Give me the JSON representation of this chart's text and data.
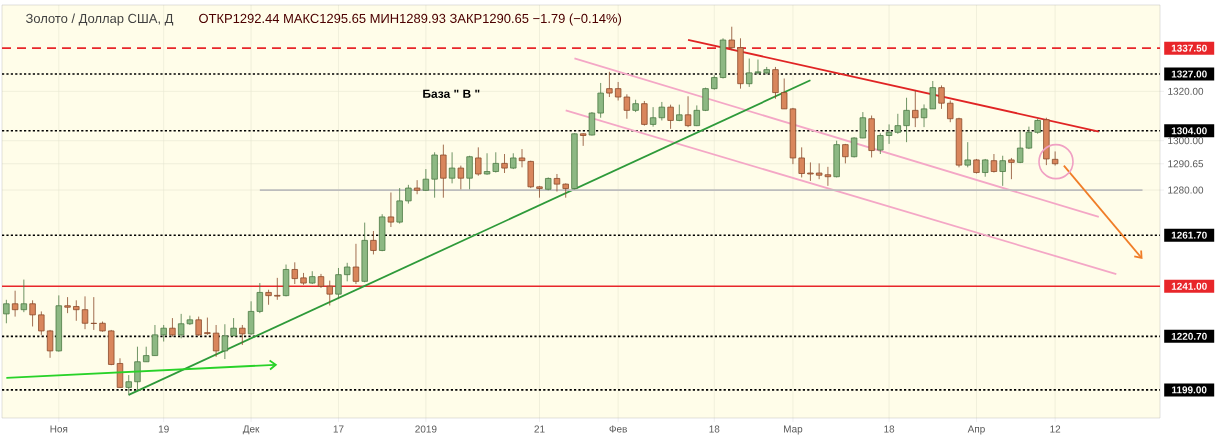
{
  "chart_data": {
    "type": "candlestick",
    "title": "Золото / Доллар США, Д",
    "subtitle": "ОТКР1292.44  МАКС1295.65  МИН1289.93  ЗАКР1290.65  −1.79 (−0.14%)",
    "annotations": [
      "База  \" В \""
    ],
    "categories": [
      null,
      null,
      null,
      null,
      null,
      null,
      "Ноя",
      null,
      null,
      null,
      null,
      null,
      null,
      null,
      null,
      null,
      null,
      null,
      "19",
      null,
      null,
      null,
      null,
      null,
      null,
      null,
      null,
      null,
      "Дек",
      null,
      null,
      null,
      null,
      null,
      null,
      null,
      null,
      null,
      "17",
      null,
      null,
      null,
      null,
      null,
      null,
      null,
      null,
      null,
      "2019",
      null,
      null,
      null,
      null,
      null,
      null,
      null,
      null,
      null,
      null,
      null,
      null,
      "21",
      null,
      null,
      null,
      null,
      null,
      null,
      null,
      null,
      "Фев",
      null,
      null,
      null,
      null,
      null,
      null,
      null,
      null,
      null,
      null,
      "18",
      null,
      null,
      null,
      null,
      null,
      null,
      null,
      null,
      "Мар",
      null,
      null,
      null,
      null,
      null,
      null,
      null,
      null,
      null,
      null,
      "18",
      null,
      null,
      null,
      null,
      null,
      null,
      null,
      null,
      null,
      "Апр",
      null,
      null,
      null,
      null,
      null,
      null,
      null,
      null,
      "12",
      null,
      null,
      null,
      null,
      null,
      null,
      null,
      null,
      null,
      null,
      null
    ],
    "ohlc": [
      [
        1229.8,
        1235.5,
        1226.0,
        1233.9
      ],
      [
        1233.9,
        1239.2,
        1228.7,
        1231.5
      ],
      [
        1231.5,
        1243.7,
        1230.5,
        1233.9
      ],
      [
        1233.9,
        1235.3,
        1224.7,
        1229.4
      ],
      [
        1229.4,
        1230.8,
        1221.3,
        1222.9
      ],
      [
        1222.9,
        1223.3,
        1212.0,
        1214.8
      ],
      [
        1214.8,
        1237.3,
        1214.5,
        1233.1
      ],
      [
        1233.1,
        1236.6,
        1230.1,
        1232.5
      ],
      [
        1232.8,
        1235.3,
        1227.0,
        1231.5
      ],
      [
        1231.5,
        1236.9,
        1223.6,
        1226.0
      ],
      [
        1226.0,
        1236.6,
        1223.3,
        1225.9
      ],
      [
        1226.0,
        1226.7,
        1222.6,
        1222.9
      ],
      [
        1222.9,
        1223.3,
        1209.0,
        1209.3
      ],
      [
        1209.7,
        1211.8,
        1200.0,
        1200.0
      ],
      [
        1200.0,
        1205.0,
        1196.8,
        1202.3
      ],
      [
        1202.3,
        1216.5,
        1198.9,
        1210.4
      ],
      [
        1210.4,
        1216.5,
        1210.4,
        1212.9
      ],
      [
        1212.9,
        1225.3,
        1212.9,
        1221.3
      ],
      [
        1221.3,
        1225.3,
        1218.6,
        1224.0
      ],
      [
        1224.0,
        1228.1,
        1220.6,
        1221.3
      ],
      [
        1221.3,
        1229.8,
        1219.9,
        1225.8
      ],
      [
        1225.8,
        1229.1,
        1225.3,
        1227.4
      ],
      [
        1227.4,
        1228.7,
        1220.9,
        1221.3
      ],
      [
        1222.2,
        1228.3,
        1221.3,
        1221.8
      ],
      [
        1222.0,
        1225.3,
        1212.4,
        1214.8
      ],
      [
        1214.8,
        1225.6,
        1211.5,
        1220.9
      ],
      [
        1220.9,
        1228.1,
        1220.9,
        1224.0
      ],
      [
        1224.0,
        1225.3,
        1217.2,
        1221.7
      ],
      [
        1221.7,
        1234.9,
        1221.3,
        1230.8
      ],
      [
        1230.8,
        1242.3,
        1230.1,
        1238.5
      ],
      [
        1238.5,
        1239.6,
        1233.5,
        1237.2
      ],
      [
        1237.3,
        1244.4,
        1235.5,
        1237.0
      ],
      [
        1237.2,
        1249.8,
        1236.9,
        1247.8
      ],
      [
        1247.8,
        1250.7,
        1241.9,
        1244.1
      ],
      [
        1244.4,
        1246.4,
        1241.6,
        1242.3
      ],
      [
        1242.3,
        1247.1,
        1241.9,
        1244.9
      ],
      [
        1244.9,
        1246.0,
        1240.3,
        1241.0
      ],
      [
        1241.0,
        1243.3,
        1233.2,
        1237.8
      ],
      [
        1237.8,
        1248.4,
        1235.8,
        1245.7
      ],
      [
        1245.7,
        1250.5,
        1243.0,
        1248.8
      ],
      [
        1248.8,
        1258.2,
        1241.9,
        1243.0
      ],
      [
        1243.0,
        1266.8,
        1242.6,
        1259.6
      ],
      [
        1259.6,
        1263.4,
        1253.9,
        1255.5
      ],
      [
        1255.5,
        1270.2,
        1255.2,
        1269.1
      ],
      [
        1269.1,
        1279.0,
        1265.0,
        1267.0
      ],
      [
        1267.0,
        1280.8,
        1266.4,
        1275.6
      ],
      [
        1275.6,
        1282.1,
        1274.5,
        1280.8
      ],
      [
        1280.8,
        1284.0,
        1278.3,
        1279.9
      ],
      [
        1279.9,
        1288.5,
        1279.7,
        1284.4
      ],
      [
        1284.4,
        1295.3,
        1276.9,
        1294.2
      ],
      [
        1294.2,
        1298.4,
        1276.9,
        1284.8
      ],
      [
        1284.8,
        1295.3,
        1282.7,
        1288.9
      ],
      [
        1288.9,
        1289.9,
        1280.3,
        1284.8
      ],
      [
        1284.8,
        1293.9,
        1280.3,
        1293.5
      ],
      [
        1293.0,
        1297.3,
        1285.8,
        1286.5
      ],
      [
        1286.5,
        1294.9,
        1286.2,
        1287.5
      ],
      [
        1287.5,
        1295.3,
        1287.1,
        1290.8
      ],
      [
        1290.8,
        1294.6,
        1286.9,
        1288.9
      ],
      [
        1288.9,
        1294.9,
        1288.5,
        1293.0
      ],
      [
        1293.0,
        1296.6,
        1289.2,
        1291.9
      ],
      [
        1291.6,
        1291.9,
        1280.8,
        1281.3
      ],
      [
        1281.3,
        1281.7,
        1276.9,
        1280.6
      ],
      [
        1280.3,
        1285.1,
        1279.9,
        1284.7
      ],
      [
        1284.7,
        1286.5,
        1279.4,
        1282.4
      ],
      [
        1282.4,
        1282.7,
        1276.9,
        1280.6
      ],
      [
        1280.6,
        1303.0,
        1280.3,
        1302.8
      ],
      [
        1302.8,
        1303.0,
        1297.9,
        1302.1
      ],
      [
        1302.3,
        1311.6,
        1302.1,
        1311.2
      ],
      [
        1311.2,
        1323.4,
        1309.3,
        1319.3
      ],
      [
        1321.1,
        1327.9,
        1317.7,
        1319.3
      ],
      [
        1321.1,
        1323.8,
        1316.3,
        1317.7
      ],
      [
        1317.7,
        1318.8,
        1308.9,
        1312.3
      ],
      [
        1312.3,
        1316.6,
        1311.6,
        1315.0
      ],
      [
        1315.0,
        1316.1,
        1306.1,
        1306.6
      ],
      [
        1306.6,
        1313.6,
        1305.7,
        1309.3
      ],
      [
        1309.3,
        1315.7,
        1308.2,
        1313.6
      ],
      [
        1313.6,
        1314.6,
        1304.8,
        1308.2
      ],
      [
        1308.2,
        1314.6,
        1307.9,
        1310.5
      ],
      [
        1310.5,
        1318.0,
        1305.5,
        1306.1
      ],
      [
        1306.1,
        1314.3,
        1305.9,
        1312.3
      ],
      [
        1312.3,
        1321.5,
        1312.0,
        1321.1
      ],
      [
        1321.1,
        1326.5,
        1320.7,
        1325.6
      ],
      [
        1325.6,
        1341.5,
        1325.2,
        1340.8
      ],
      [
        1340.8,
        1346.2,
        1336.7,
        1337.7
      ],
      [
        1337.7,
        1341.5,
        1321.1,
        1323.1
      ],
      [
        1323.1,
        1333.3,
        1321.8,
        1327.5
      ],
      [
        1327.5,
        1332.9,
        1326.9,
        1327.9
      ],
      [
        1327.5,
        1329.9,
        1326.9,
        1328.8
      ],
      [
        1328.8,
        1329.9,
        1317.0,
        1319.5
      ],
      [
        1319.5,
        1325.2,
        1312.9,
        1312.9
      ],
      [
        1312.9,
        1313.3,
        1290.5,
        1293.0
      ],
      [
        1293.0,
        1297.3,
        1285.1,
        1286.7
      ],
      [
        1286.9,
        1291.2,
        1283.7,
        1286.5
      ],
      [
        1286.9,
        1290.8,
        1284.4,
        1286.0
      ],
      [
        1286.2,
        1289.4,
        1281.7,
        1285.4
      ],
      [
        1285.4,
        1300.0,
        1285.1,
        1298.4
      ],
      [
        1298.4,
        1298.7,
        1290.8,
        1293.5
      ],
      [
        1293.5,
        1301.4,
        1293.2,
        1301.1
      ],
      [
        1301.1,
        1311.6,
        1301.0,
        1309.3
      ],
      [
        1308.9,
        1310.2,
        1293.2,
        1296.0
      ],
      [
        1296.2,
        1303.0,
        1294.6,
        1302.1
      ],
      [
        1302.1,
        1306.6,
        1298.7,
        1303.4
      ],
      [
        1303.4,
        1310.9,
        1302.8,
        1306.1
      ],
      [
        1306.1,
        1317.4,
        1299.4,
        1312.3
      ],
      [
        1312.3,
        1320.4,
        1305.5,
        1309.3
      ],
      [
        1309.3,
        1314.7,
        1305.5,
        1312.9
      ],
      [
        1312.9,
        1324.2,
        1312.9,
        1321.5
      ],
      [
        1321.5,
        1322.4,
        1312.9,
        1315.2
      ],
      [
        1315.2,
        1316.3,
        1307.5,
        1308.9
      ],
      [
        1308.9,
        1309.3,
        1289.2,
        1290.1
      ],
      [
        1290.1,
        1299.4,
        1289.2,
        1292.2
      ],
      [
        1292.2,
        1292.6,
        1286.7,
        1287.1
      ],
      [
        1287.1,
        1292.6,
        1285.4,
        1292.2
      ],
      [
        1291.9,
        1294.6,
        1287.1,
        1287.5
      ],
      [
        1287.5,
        1293.9,
        1281.7,
        1291.9
      ],
      [
        1292.2,
        1293.0,
        1284.4,
        1291.2
      ],
      [
        1291.2,
        1303.8,
        1290.9,
        1297.0
      ],
      [
        1297.0,
        1305.7,
        1296.6,
        1303.4
      ],
      [
        1303.4,
        1308.9,
        1302.8,
        1308.2
      ],
      [
        1308.5,
        1309.3,
        1290.1,
        1292.6
      ],
      [
        1292.44,
        1295.65,
        1289.93,
        1290.65
      ],
      null,
      null,
      null,
      null,
      null,
      null,
      null,
      null,
      null,
      null,
      null
    ],
    "series": [
      {
        "type": "line",
        "color": "#e02424",
        "values": [
          null,
          null,
          null,
          null,
          null,
          null,
          null,
          null,
          null,
          null,
          null,
          null,
          null,
          null,
          null,
          null,
          null,
          null,
          null,
          null,
          null,
          null,
          null,
          null,
          null,
          null,
          null,
          null,
          null,
          null,
          null,
          null,
          null,
          null,
          null,
          null,
          null,
          null,
          null,
          null,
          null,
          null,
          null,
          null,
          null,
          null,
          null,
          null,
          null,
          null,
          null,
          null,
          null,
          null,
          null,
          null,
          null,
          null,
          null,
          null,
          null,
          null,
          null,
          null,
          null,
          null,
          null,
          null,
          null,
          null,
          null,
          null,
          null,
          null,
          null,
          null,
          null,
          null,
          1340.9,
          null,
          null,
          null,
          null,
          null,
          null,
          null,
          null,
          null,
          null,
          null,
          null,
          null,
          null,
          null,
          null,
          null,
          null,
          null,
          null,
          null,
          null,
          null,
          null,
          null,
          null,
          null,
          null,
          null,
          null,
          null,
          null,
          null,
          null,
          null,
          null,
          null,
          null,
          null,
          null,
          null,
          null,
          null,
          null,
          null,
          null,
          1303.7,
          null,
          null,
          null,
          null,
          null,
          null
        ]
      },
      {
        "type": "line",
        "color": "#f4a7c6",
        "values": [
          null,
          null,
          null,
          null,
          null,
          null,
          null,
          null,
          null,
          null,
          null,
          null,
          null,
          null,
          null,
          null,
          null,
          null,
          null,
          null,
          null,
          null,
          null,
          null,
          null,
          null,
          null,
          null,
          null,
          null,
          null,
          null,
          null,
          null,
          null,
          null,
          null,
          null,
          null,
          null,
          null,
          null,
          null,
          null,
          null,
          null,
          null,
          null,
          null,
          null,
          null,
          null,
          null,
          null,
          null,
          null,
          null,
          null,
          null,
          null,
          null,
          null,
          null,
          null,
          null,
          1333.4,
          null,
          null,
          null,
          null,
          null,
          null,
          null,
          null,
          null,
          null,
          null,
          null,
          null,
          null,
          null,
          null,
          null,
          null,
          null,
          null,
          null,
          null,
          null,
          null,
          null,
          null,
          null,
          null,
          null,
          null,
          null,
          null,
          null,
          null,
          null,
          null,
          null,
          null,
          null,
          null,
          null,
          null,
          null,
          null,
          null,
          null,
          null,
          null,
          null,
          null,
          null,
          null,
          null,
          null,
          null,
          null,
          null,
          null,
          null,
          1269.1,
          null,
          null,
          null,
          null,
          null,
          null
        ]
      },
      {
        "type": "line",
        "color": "#f4a7c6",
        "values": [
          null,
          null,
          null,
          null,
          null,
          null,
          null,
          null,
          null,
          null,
          null,
          null,
          null,
          null,
          null,
          null,
          null,
          null,
          null,
          null,
          null,
          null,
          null,
          null,
          null,
          null,
          null,
          null,
          null,
          null,
          null,
          null,
          null,
          null,
          null,
          null,
          null,
          null,
          null,
          null,
          null,
          null,
          null,
          null,
          null,
          null,
          null,
          null,
          null,
          null,
          null,
          null,
          null,
          null,
          null,
          null,
          null,
          null,
          null,
          null,
          null,
          null,
          null,
          null,
          1312.3,
          null,
          null,
          null,
          null,
          null,
          null,
          null,
          null,
          null,
          null,
          null,
          null,
          null,
          null,
          null,
          null,
          null,
          null,
          null,
          null,
          null,
          null,
          null,
          null,
          null,
          null,
          null,
          null,
          null,
          null,
          null,
          null,
          null,
          null,
          null,
          null,
          null,
          null,
          null,
          null,
          null,
          null,
          null,
          null,
          null,
          null,
          null,
          null,
          null,
          null,
          null,
          null,
          null,
          null,
          null,
          null,
          null,
          null,
          null,
          null,
          null,
          null,
          1245.9,
          null,
          null,
          null,
          null
        ]
      },
      {
        "type": "line",
        "color": "#2e9a3a",
        "values": [
          null,
          null,
          null,
          null,
          null,
          null,
          null,
          null,
          null,
          null,
          null,
          null,
          null,
          null,
          1197.0,
          null,
          null,
          null,
          null,
          null,
          null,
          null,
          null,
          null,
          null,
          null,
          null,
          null,
          null,
          null,
          null,
          null,
          null,
          null,
          null,
          null,
          null,
          null,
          null,
          null,
          null,
          null,
          null,
          null,
          null,
          null,
          null,
          null,
          null,
          null,
          null,
          null,
          null,
          null,
          null,
          null,
          null,
          null,
          null,
          null,
          null,
          null,
          null,
          null,
          null,
          null,
          null,
          null,
          null,
          null,
          null,
          null,
          null,
          null,
          null,
          null,
          null,
          null,
          null,
          null,
          null,
          null,
          null,
          null,
          null,
          null,
          null,
          null,
          null,
          null,
          null,
          null,
          1324.5,
          null,
          null,
          null,
          null,
          null,
          null,
          null,
          null,
          null,
          null,
          null,
          null,
          null,
          null,
          null,
          null,
          null,
          null,
          null,
          null,
          null,
          null,
          null,
          null,
          null,
          null,
          null,
          null,
          null,
          null,
          null,
          null,
          null,
          null,
          null,
          null,
          null,
          null,
          null
        ]
      },
      {
        "type": "line",
        "color": "#bdbdbd",
        "values": [
          null,
          null,
          null,
          null,
          null,
          null,
          null,
          null,
          null,
          null,
          null,
          null,
          null,
          null,
          null,
          null,
          null,
          null,
          null,
          null,
          null,
          null,
          null,
          null,
          null,
          null,
          null,
          null,
          null,
          1280,
          null,
          null,
          null,
          null,
          null,
          null,
          null,
          null,
          null,
          null,
          null,
          null,
          null,
          null,
          null,
          null,
          null,
          null,
          null,
          null,
          null,
          null,
          null,
          null,
          null,
          null,
          null,
          null,
          null,
          null,
          null,
          null,
          null,
          null,
          null,
          null,
          null,
          null,
          null,
          null,
          null,
          null,
          null,
          null,
          null,
          null,
          null,
          null,
          null,
          null,
          null,
          null,
          null,
          null,
          null,
          null,
          null,
          null,
          null,
          null,
          null,
          null,
          null,
          null,
          null,
          null,
          null,
          null,
          null,
          null,
          null,
          null,
          null,
          null,
          null,
          null,
          null,
          null,
          null,
          null,
          null,
          null,
          null,
          null,
          null,
          null,
          null,
          null,
          null,
          null,
          null,
          null,
          null,
          null,
          null,
          null,
          null,
          null,
          null,
          null,
          1280,
          null
        ]
      }
    ],
    "ref_lines": [
      {
        "axis": "y",
        "value": 1337.5,
        "label": "1337.50",
        "color": "#e8262a",
        "line_style": "dashed"
      },
      {
        "axis": "y",
        "value": 1327,
        "label": "1327.00",
        "color": "#000000",
        "line_style": "dotted"
      },
      {
        "axis": "y",
        "value": 1304,
        "label": "1304.00",
        "color": "#000000",
        "line_style": "dotted"
      },
      {
        "axis": "y",
        "value": 1261.7,
        "label": "1261.70",
        "color": "#000000",
        "line_style": "dotted"
      },
      {
        "axis": "y",
        "value": 1241,
        "label": "1241.00",
        "color": "#e8262a",
        "line_style": "solid"
      },
      {
        "axis": "y",
        "value": 1220.7,
        "label": "1220.70",
        "color": "#000000",
        "line_style": "dotted"
      },
      {
        "axis": "y",
        "value": 1199,
        "label": "1199.00",
        "color": "#000000",
        "line_style": "dotted"
      }
    ],
    "ylim": [
      1187.6,
      1355
    ],
    "yticks": [
      {
        "value": 1280,
        "label": "1280.00"
      },
      {
        "value": 1290.65,
        "label": "1290.65"
      },
      {
        "value": 1300,
        "label": "1300.00"
      },
      {
        "value": 1320,
        "label": "1320.00"
      }
    ],
    "grid": true
  }
}
